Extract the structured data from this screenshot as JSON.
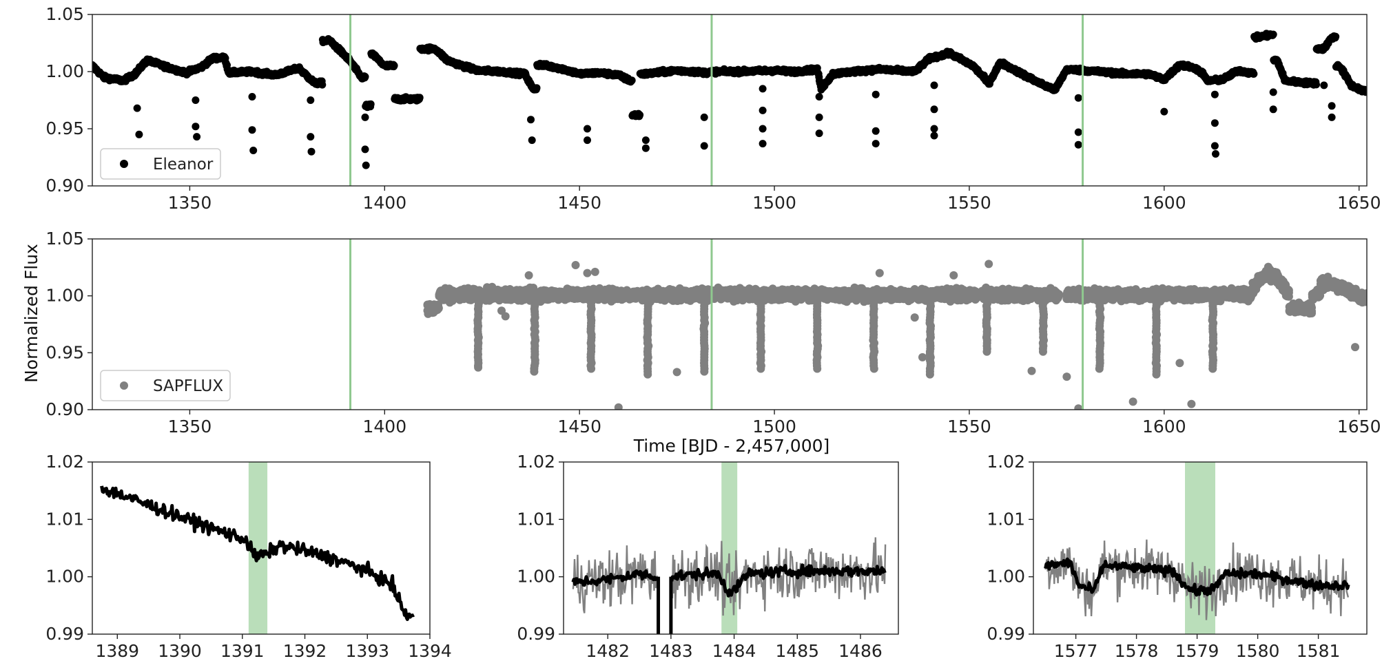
{
  "figure": {
    "ylabel": "Normalized Flux",
    "xlabel": "Time [BJD - 2,457,000]"
  },
  "colors": {
    "eleanor": "#000000",
    "sapflux": "#808080",
    "marker_line": "#8fc98f",
    "marker_band": "#a3d3a3"
  },
  "chart_data": [
    {
      "id": "eleanor",
      "type": "scatter",
      "legend": "Eleanor",
      "legend_position": "lower-left",
      "xlim": [
        1325,
        1652
      ],
      "ylim": [
        0.9,
        1.05
      ],
      "xticks": [
        "1350",
        "1400",
        "1450",
        "1500",
        "1550",
        "1600",
        "1650"
      ],
      "yticks": [
        "0.90",
        "0.95",
        "1.00",
        "1.05"
      ],
      "vlines": [
        1391.2,
        1483.9,
        1579.1
      ],
      "trend": [
        [
          1325,
          1.005
        ],
        [
          1328,
          0.995
        ],
        [
          1333,
          0.992
        ],
        [
          1336,
          0.998
        ],
        [
          1339,
          1.01
        ],
        [
          1345,
          1.003
        ],
        [
          1349,
          0.999
        ],
        [
          1353,
          1.004
        ],
        [
          1356,
          1.012
        ],
        [
          1359,
          1.012
        ],
        [
          1360,
          0.999
        ],
        [
          1366,
          1.0
        ],
        [
          1372,
          0.997
        ],
        [
          1378,
          1.003
        ],
        [
          1382,
          0.99
        ],
        [
          1386,
          1.027
        ],
        [
          1391,
          1.01
        ],
        [
          1394,
          0.995
        ],
        [
          1396,
          0.97
        ],
        [
          1397,
          1.015
        ],
        [
          1400,
          1.005
        ],
        [
          1405,
          0.976
        ],
        [
          1413,
          1.02
        ],
        [
          1416,
          1.01
        ],
        [
          1420,
          1.005
        ],
        [
          1424,
          1.001
        ],
        [
          1430,
          1.0
        ],
        [
          1436,
          0.998
        ],
        [
          1438,
          0.985
        ],
        [
          1440,
          1.006
        ],
        [
          1445,
          1.003
        ],
        [
          1450,
          0.998
        ],
        [
          1455,
          0.999
        ],
        [
          1460,
          0.997
        ],
        [
          1463,
          0.992
        ],
        [
          1464,
          0.962
        ],
        [
          1467,
          0.998
        ],
        [
          1475,
          1.001
        ],
        [
          1483,
          0.999
        ],
        [
          1484,
          1.0
        ],
        [
          1490,
          1.0
        ],
        [
          1500,
          1.001
        ],
        [
          1505,
          1.0
        ],
        [
          1511,
          1.002
        ],
        [
          1512,
          0.985
        ],
        [
          1515,
          0.998
        ],
        [
          1520,
          1.0
        ],
        [
          1527,
          1.002
        ],
        [
          1536,
          1.0
        ],
        [
          1540,
          1.012
        ],
        [
          1545,
          1.016
        ],
        [
          1551,
          1.005
        ],
        [
          1555,
          0.99
        ],
        [
          1558,
          1.008
        ],
        [
          1563,
          0.999
        ],
        [
          1568,
          0.99
        ],
        [
          1572,
          0.984
        ],
        [
          1575,
          1.002
        ],
        [
          1580,
          1.001
        ],
        [
          1590,
          0.998
        ],
        [
          1596,
          0.998
        ],
        [
          1600,
          0.993
        ],
        [
          1604,
          1.006
        ],
        [
          1608,
          1.003
        ],
        [
          1610,
          0.998
        ],
        [
          1611,
          0.992
        ],
        [
          1615,
          0.993
        ],
        [
          1619,
          1.001
        ],
        [
          1622,
          0.999
        ],
        [
          1624,
          1.03
        ],
        [
          1627,
          1.032
        ],
        [
          1629,
          1.01
        ],
        [
          1631,
          0.992
        ],
        [
          1637,
          0.99
        ],
        [
          1641,
          1.02
        ],
        [
          1643,
          1.03
        ],
        [
          1645,
          1.005
        ],
        [
          1648,
          0.988
        ],
        [
          1652,
          0.982
        ]
      ],
      "dips": [
        [
          1336.5,
          0.968
        ],
        [
          1337,
          0.945
        ],
        [
          1351.5,
          0.975
        ],
        [
          1351.5,
          0.952
        ],
        [
          1351.8,
          0.943
        ],
        [
          1366,
          0.978
        ],
        [
          1366,
          0.949
        ],
        [
          1366.3,
          0.931
        ],
        [
          1381,
          0.975
        ],
        [
          1381,
          0.943
        ],
        [
          1381.2,
          0.93
        ],
        [
          1395,
          0.96
        ],
        [
          1395,
          0.932
        ],
        [
          1395.2,
          0.918
        ],
        [
          1437.5,
          0.958
        ],
        [
          1437.8,
          0.94
        ],
        [
          1452,
          0.95
        ],
        [
          1452,
          0.94
        ],
        [
          1467,
          0.94
        ],
        [
          1467,
          0.933
        ],
        [
          1482,
          0.96
        ],
        [
          1482,
          0.935
        ],
        [
          1497,
          0.985
        ],
        [
          1497,
          0.966
        ],
        [
          1497,
          0.95
        ],
        [
          1497,
          0.937
        ],
        [
          1511.5,
          0.978
        ],
        [
          1511.5,
          0.96
        ],
        [
          1511.5,
          0.946
        ],
        [
          1526,
          0.98
        ],
        [
          1526,
          0.948
        ],
        [
          1526,
          0.937
        ],
        [
          1541,
          0.988
        ],
        [
          1541,
          0.967
        ],
        [
          1541,
          0.95
        ],
        [
          1541,
          0.944
        ],
        [
          1578,
          0.977
        ],
        [
          1578,
          0.947
        ],
        [
          1578,
          0.936
        ],
        [
          1600,
          0.965
        ],
        [
          1613,
          0.98
        ],
        [
          1613,
          0.955
        ],
        [
          1613,
          0.935
        ],
        [
          1613.2,
          0.928
        ],
        [
          1628,
          0.982
        ],
        [
          1628,
          0.967
        ],
        [
          1643,
          0.97
        ],
        [
          1643,
          0.96
        ],
        [
          1641,
          0.988
        ]
      ]
    },
    {
      "id": "sapflux",
      "type": "scatter",
      "legend": "SAPFLUX",
      "legend_position": "lower-left",
      "xlim": [
        1325,
        1652
      ],
      "ylim": [
        0.9,
        1.05
      ],
      "xticks": [
        "1350",
        "1400",
        "1450",
        "1500",
        "1550",
        "1600",
        "1650"
      ],
      "yticks": [
        "0.90",
        "0.95",
        "1.00",
        "1.05"
      ],
      "vlines": [
        1391.2,
        1483.9,
        1579.1
      ],
      "segments": [
        [
          1411,
          1418
        ],
        [
          1419,
          1465
        ],
        [
          1466,
          1524
        ],
        [
          1525,
          1539
        ],
        [
          1540,
          1552
        ],
        [
          1553,
          1573
        ],
        [
          1575,
          1587
        ],
        [
          1588,
          1598
        ],
        [
          1599,
          1611
        ],
        [
          1612,
          1652
        ]
      ],
      "base_level": 1.001,
      "band_height": 0.01,
      "transit_times": [
        1424,
        1438.5,
        1453,
        1467.5,
        1482,
        1496.5,
        1511,
        1525.5,
        1540,
        1554.5,
        1569,
        1583.5,
        1598,
        1612.5
      ],
      "transit_depth_min": [
        0.937,
        0.932,
        0.935,
        0.93,
        0.932,
        0.935,
        0.935,
        0.936,
        0.93,
        0.95,
        0.95,
        0.935,
        0.93,
        0.935
      ],
      "outliers": [
        [
          1424,
          0.937
        ],
        [
          1437,
          1.018
        ],
        [
          1449,
          1.027
        ],
        [
          1452,
          1.02
        ],
        [
          1454,
          1.021
        ],
        [
          1460,
          0.902
        ],
        [
          1475,
          0.933
        ],
        [
          1527,
          1.02
        ],
        [
          1538,
          0.946
        ],
        [
          1546,
          1.018
        ],
        [
          1555,
          1.028
        ],
        [
          1566,
          0.934
        ],
        [
          1575,
          0.929
        ],
        [
          1578,
          0.901
        ],
        [
          1592,
          0.907
        ],
        [
          1604,
          0.941
        ],
        [
          1607,
          0.905
        ],
        [
          1649,
          0.955
        ],
        [
          1430,
          0.987
        ],
        [
          1431,
          0.982
        ],
        [
          1536,
          0.981
        ]
      ]
    },
    {
      "id": "zoom-1391",
      "type": "line",
      "xlim": [
        1388.6,
        1394.0
      ],
      "ylim": [
        0.99,
        1.02
      ],
      "xticks": [
        "1389",
        "1390",
        "1391",
        "1392",
        "1393",
        "1394"
      ],
      "yticks": [
        "0.99",
        "1.00",
        "1.01",
        "1.02"
      ],
      "band": [
        1391.1,
        1391.4
      ],
      "trend": [
        [
          1388.75,
          1.0155
        ],
        [
          1389.5,
          1.0125
        ],
        [
          1390.5,
          1.0085
        ],
        [
          1391.05,
          1.0065
        ],
        [
          1391.2,
          1.0035
        ],
        [
          1391.4,
          1.004
        ],
        [
          1391.6,
          1.0055
        ],
        [
          1392.0,
          1.0045
        ],
        [
          1392.5,
          1.003
        ],
        [
          1393.0,
          1.001
        ],
        [
          1393.4,
          0.9985
        ],
        [
          1393.6,
          0.9935
        ],
        [
          1393.75,
          0.993
        ]
      ],
      "noise_amp": 0.0011,
      "has_gray_series": false
    },
    {
      "id": "zoom-1484",
      "type": "line",
      "xlim": [
        1481.3,
        1486.6
      ],
      "ylim": [
        0.99,
        1.02
      ],
      "xticks": [
        "1482",
        "1483",
        "1484",
        "1485",
        "1486"
      ],
      "yticks": [
        "0.99",
        "1.00",
        "1.01",
        "1.02"
      ],
      "band": [
        1483.8,
        1484.05
      ],
      "trend": [
        [
          1481.45,
          0.999
        ],
        [
          1482.0,
          0.9995
        ],
        [
          1482.5,
          1.0005
        ],
        [
          1482.75,
          1.0
        ],
        [
          1483.0,
          1.0
        ],
        [
          1483.5,
          1.0005
        ],
        [
          1483.75,
          1.0005
        ],
        [
          1483.9,
          0.9975
        ],
        [
          1484.05,
          0.998
        ],
        [
          1484.2,
          1.0005
        ],
        [
          1485.0,
          1.001
        ],
        [
          1486.0,
          1.001
        ],
        [
          1486.4,
          1.001
        ]
      ],
      "gap": [
        1482.8,
        1483.0
      ],
      "gray_amp": 0.005,
      "noise_amp": 0.0009,
      "has_gray_series": true
    },
    {
      "id": "zoom-1579",
      "type": "line",
      "xlim": [
        1576.3,
        1581.8
      ],
      "ylim": [
        0.99,
        1.02
      ],
      "xticks": [
        "1577",
        "1578",
        "1579",
        "1580",
        "1581"
      ],
      "yticks": [
        "0.99",
        "1.00",
        "1.01",
        "1.02"
      ],
      "band": [
        1578.8,
        1579.3
      ],
      "trend": [
        [
          1576.5,
          1.0018
        ],
        [
          1576.9,
          1.0025
        ],
        [
          1577.05,
          0.9985
        ],
        [
          1577.3,
          0.9975
        ],
        [
          1577.45,
          1.002
        ],
        [
          1578.0,
          1.0015
        ],
        [
          1578.6,
          1.001
        ],
        [
          1578.85,
          0.998
        ],
        [
          1579.0,
          0.9975
        ],
        [
          1579.3,
          0.998
        ],
        [
          1579.45,
          1.0005
        ],
        [
          1580.0,
          1.0005
        ],
        [
          1581.0,
          0.9985
        ],
        [
          1581.5,
          0.9985
        ]
      ],
      "gray_amp": 0.0045,
      "noise_amp": 0.0008,
      "has_gray_series": true
    }
  ]
}
